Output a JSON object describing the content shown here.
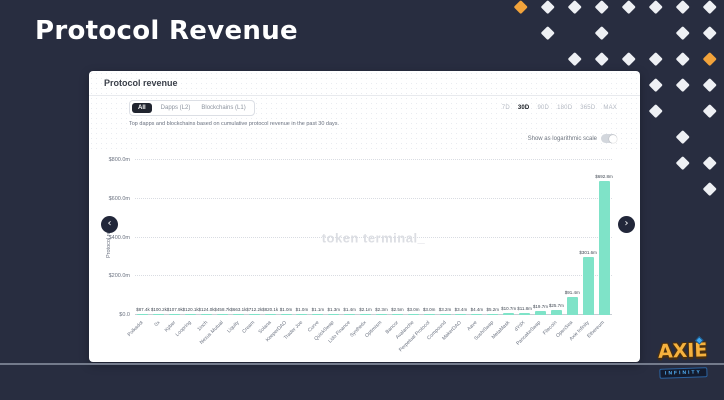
{
  "slide": {
    "title": "Protocol Revenue",
    "background_color": "#282d40",
    "diamond_white": "#eef0f4",
    "diamond_orange": "#f2a33b"
  },
  "brand": {
    "name_top": "AXIE",
    "name_bottom": "INFINITY"
  },
  "card": {
    "header": "Protocol revenue",
    "filters": {
      "options": [
        "All",
        "Dapps (L2)",
        "Blockchains (L1)"
      ],
      "selected": "All"
    },
    "description": "Top dapps and blockchains based on cumulative protocol revenue in the past 30 days.",
    "time_ranges": [
      "7D",
      "30D",
      "90D",
      "180D",
      "365D",
      "MAX"
    ],
    "selected_range": "30D",
    "log_scale_label": "Show as logarithmic scale",
    "log_scale_on": false,
    "watermark": "token terminal_",
    "nav_prev": "‹",
    "nav_next": "›"
  },
  "chart_data": {
    "type": "bar",
    "title": "Protocol revenue",
    "xlabel": "",
    "ylabel": "Protocol revenue",
    "ylim_usd_m": [
      0,
      800
    ],
    "grid": "dotted-horizontal",
    "bar_color": "#7fe3c8",
    "y_ticks": [
      {
        "label": "$0.0",
        "value": 0
      },
      {
        "label": "$200.0m",
        "value": 200
      },
      {
        "label": "$400.0m",
        "value": 400
      },
      {
        "label": "$600.0m",
        "value": 600
      },
      {
        "label": "$800.0m",
        "value": 800
      }
    ],
    "categories": [
      "Polkadot",
      "0x",
      "Kyber",
      "Loopring",
      "1inch",
      "Nexus Mutual",
      "Liquity",
      "Cream",
      "Solana",
      "KeeperDAO",
      "Trader Joe",
      "Curve",
      "QuickSwap",
      "Lido Finance",
      "Synthetix",
      "Optimism",
      "Bancor",
      "Avalanche",
      "Perpetual Protocol",
      "Compound",
      "MakerDAO",
      "Aave",
      "SushiSwap",
      "MetaMask",
      "dYdX",
      "PancakeSwap",
      "Filecoin",
      "OpenSea",
      "Axie Infinity",
      "Ethereum"
    ],
    "series": [
      {
        "name": "Cumulative protocol revenue, past 30 days",
        "values_usd_m": [
          0.0874,
          0.1002,
          0.1079,
          0.1201,
          0.124,
          0.4587,
          0.6631,
          0.7122,
          0.8201,
          1.0,
          1.0,
          1.1,
          1.3,
          1.4,
          2.1,
          2.3,
          2.5,
          3.0,
          3.0,
          3.2,
          3.4,
          4.4,
          5.2,
          10.7,
          11.8,
          19.7,
          25.7,
          91.4,
          301.6,
          692.8
        ],
        "value_labels": [
          "$87.4k",
          "$100.2k",
          "$107.9k",
          "$120.1k",
          "$124.0k",
          "$458.7k",
          "$663.1k",
          "$712.2k",
          "$820.1k",
          "$1.0m",
          "$1.0m",
          "$1.1m",
          "$1.3m",
          "$1.4m",
          "$2.1m",
          "$2.3m",
          "$2.5m",
          "$3.0m",
          "$3.0m",
          "$3.2m",
          "$3.4m",
          "$4.4m",
          "$5.2m",
          "$10.7m",
          "$11.8m",
          "$19.7m",
          "$25.7m",
          "$91.4m",
          "$301.6m",
          "$692.8m"
        ]
      }
    ]
  }
}
